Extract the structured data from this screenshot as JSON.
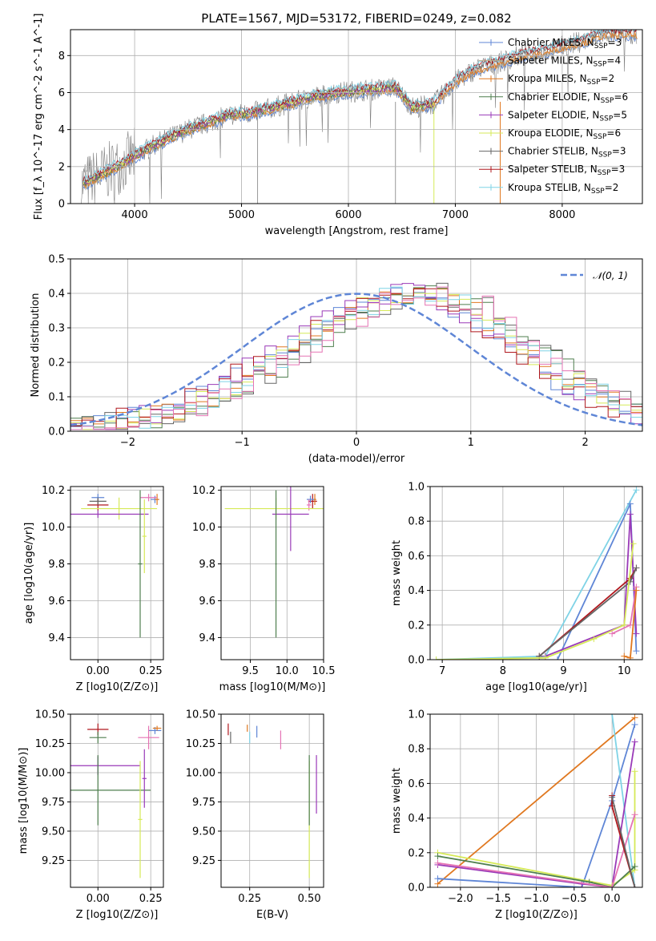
{
  "colors": {
    "chabrier_miles": "#5f86d6",
    "salpeter_miles": "#b9ac8a",
    "kroupa_miles": "#e07820",
    "chabrier_elodie": "#4f7f4f",
    "salpeter_elodie": "#9a3ab8",
    "kroupa_elodie": "#d6ea58",
    "chabrier_stelib": "#666666",
    "salpeter_stelib": "#b0181e",
    "kroupa_stelib": "#7fd3e6",
    "pink": "#e573b4",
    "spectrum": "#808080"
  },
  "chart_data": [
    {
      "id": "spectrum",
      "type": "line",
      "title": "PLATE=1567, MJD=53172, FIBERID=0249, z=0.082",
      "xlabel": "wavelength [Angstrom, rest frame]",
      "ylabel": "Flux [f_λ 10^-17 erg cm^-2 s^-1 A^-1]",
      "xlim": [
        3400,
        8750
      ],
      "ylim": [
        0,
        9.4
      ],
      "xticks": [
        4000,
        5000,
        6000,
        7000,
        8000
      ],
      "yticks": [
        0,
        2,
        4,
        6,
        8
      ],
      "legend_position": "top-right",
      "legend": [
        {
          "label": "Chabrier MILES, N_SSP=3",
          "color_key": "chabrier_miles"
        },
        {
          "label": "Salpeter MILES, N_SSP=4",
          "color_key": "salpeter_miles"
        },
        {
          "label": "Kroupa MILES, N_SSP=2",
          "color_key": "kroupa_miles"
        },
        {
          "label": "Chabrier ELODIE, N_SSP=6",
          "color_key": "chabrier_elodie"
        },
        {
          "label": "Salpeter ELODIE, N_SSP=5",
          "color_key": "salpeter_elodie"
        },
        {
          "label": "Kroupa ELODIE, N_SSP=6",
          "color_key": "kroupa_elodie"
        },
        {
          "label": "Chabrier STELIB, N_SSP=3",
          "color_key": "chabrier_stelib"
        },
        {
          "label": "Salpeter STELIB, N_SSP=3",
          "color_key": "salpeter_stelib"
        },
        {
          "label": "Kroupa STELIB, N_SSP=2",
          "color_key": "kroupa_stelib"
        }
      ],
      "continuum": {
        "x": [
          3500,
          3700,
          3900,
          4100,
          4300,
          4500,
          4700,
          4900,
          5100,
          5300,
          5500,
          5700,
          5900,
          6100,
          6300,
          6440,
          6600,
          6800,
          7000,
          7200,
          7400,
          7600,
          7800,
          8000,
          8200,
          8400
        ],
        "y": [
          1.0,
          1.6,
          2.2,
          2.9,
          3.5,
          4.0,
          4.4,
          4.8,
          4.9,
          5.2,
          5.5,
          5.8,
          6.0,
          6.1,
          6.2,
          6.3,
          5.2,
          5.4,
          6.6,
          7.3,
          7.6,
          8.0,
          8.2,
          8.5,
          8.8,
          9.2
        ]
      }
    },
    {
      "id": "residuals",
      "type": "line",
      "xlabel": "(data-model)/error",
      "ylabel": "Normed distribution",
      "xlim": [
        -2.5,
        2.5
      ],
      "ylim": [
        0,
        0.5
      ],
      "xticks": [
        -2,
        -1,
        0,
        1,
        2
      ],
      "yticks": [
        0.0,
        0.1,
        0.2,
        0.3,
        0.4,
        0.5
      ],
      "legend_position": "top-right",
      "legend": [
        {
          "label": "𝒩(0, 1)",
          "color_key": "chabrier_miles"
        }
      ],
      "series_note": "step histograms",
      "histogram_shape": {
        "x": [
          -2.4,
          -2.0,
          -1.6,
          -1.2,
          -0.8,
          -0.4,
          0.0,
          0.4,
          0.8,
          1.2,
          1.6,
          2.0,
          2.4
        ],
        "y": [
          0.02,
          0.04,
          0.08,
          0.15,
          0.23,
          0.32,
          0.38,
          0.4,
          0.36,
          0.25,
          0.16,
          0.09,
          0.04
        ]
      }
    },
    {
      "id": "age_vs_Z",
      "type": "scatter",
      "xlabel": "Z [log10(Z/Z⊙)]",
      "ylabel": "age [log10(age/yr)]",
      "xlim": [
        -0.13,
        0.31
      ],
      "ylim": [
        9.28,
        10.22
      ],
      "xticks": [
        0.0,
        0.25
      ],
      "yticks": [
        9.4,
        9.6,
        9.8,
        10.0,
        10.2
      ],
      "points": [
        {
          "x": 0.0,
          "y": 10.16,
          "xerr": 0.03,
          "yerr": 0.02,
          "color_key": "chabrier_miles"
        },
        {
          "x": 0.0,
          "y": 10.12,
          "xerr": 0.05,
          "yerr": 0.03,
          "color_key": "salpeter_stelib"
        },
        {
          "x": 0.0,
          "y": 10.14,
          "xerr": 0.04,
          "yerr": 0.02,
          "color_key": "chabrier_stelib"
        },
        {
          "x": 0.27,
          "y": 10.15,
          "xerr": 0.02,
          "yerr": 0.02,
          "color_key": "chabrier_miles"
        },
        {
          "x": 0.28,
          "y": 10.15,
          "xerr": 0.01,
          "yerr": 0.03,
          "color_key": "kroupa_miles"
        },
        {
          "x": 0.24,
          "y": 10.16,
          "xerr": 0.04,
          "yerr": 0.02,
          "color_key": "pink"
        },
        {
          "x": 0.1,
          "y": 10.1,
          "xerr": 0.18,
          "yerr": 0.06,
          "color_key": "kroupa_elodie"
        },
        {
          "x": 0.0,
          "y": 10.07,
          "xerr": 0.24,
          "yerr": 0.02,
          "color_key": "salpeter_elodie"
        },
        {
          "x": 0.2,
          "y": 9.8,
          "xerr": 0.01,
          "yerr": 0.4,
          "color_key": "chabrier_elodie"
        },
        {
          "x": 0.22,
          "y": 9.95,
          "xerr": 0.01,
          "yerr": 0.2,
          "color_key": "kroupa_elodie"
        }
      ]
    },
    {
      "id": "age_vs_mass",
      "type": "scatter",
      "xlabel": "mass [log10(M/M⊙)]",
      "ylabel": "",
      "xlim": [
        9.1,
        10.5
      ],
      "ylim": [
        9.28,
        10.22
      ],
      "xticks": [
        9.5,
        10.0,
        10.5
      ],
      "yticks": [
        9.4,
        9.6,
        9.8,
        10.0,
        10.2
      ],
      "points": [
        {
          "x": 10.35,
          "y": 10.14,
          "xerr": 0.06,
          "yerr": 0.04,
          "color_key": "salpeter_stelib"
        },
        {
          "x": 10.38,
          "y": 10.15,
          "xerr": 0.02,
          "yerr": 0.03,
          "color_key": "kroupa_miles"
        },
        {
          "x": 10.32,
          "y": 10.15,
          "xerr": 0.05,
          "yerr": 0.02,
          "color_key": "chabrier_miles"
        },
        {
          "x": 10.3,
          "y": 10.12,
          "xerr": 0.03,
          "yerr": 0.03,
          "color_key": "pink"
        },
        {
          "x": 9.85,
          "y": 10.1,
          "xerr": 0.7,
          "yerr": 0.06,
          "color_key": "kroupa_elodie"
        },
        {
          "x": 10.05,
          "y": 10.07,
          "xerr": 0.25,
          "yerr": 0.2,
          "color_key": "salpeter_elodie"
        },
        {
          "x": 9.85,
          "y": 9.8,
          "xerr": 0.01,
          "yerr": 0.4,
          "color_key": "chabrier_elodie"
        }
      ]
    },
    {
      "id": "weight_vs_age",
      "type": "line",
      "xlabel": "age [log10(age/yr)]",
      "ylabel": "mass weight",
      "xlim": [
        6.8,
        10.3
      ],
      "ylim": [
        0,
        1
      ],
      "xticks": [
        7,
        8,
        9,
        10
      ],
      "yticks": [
        0.0,
        0.2,
        0.4,
        0.6,
        0.8,
        1.0
      ],
      "series": [
        {
          "color_key": "kroupa_stelib",
          "x": [
            6.9,
            8.7,
            10.2
          ],
          "y": [
            0.0,
            0.02,
            0.98
          ]
        },
        {
          "color_key": "chabrier_miles",
          "x": [
            8.9,
            10.1,
            10.2
          ],
          "y": [
            0.0,
            0.9,
            0.05
          ]
        },
        {
          "color_key": "salpeter_elodie",
          "x": [
            8.7,
            10.0,
            10.1,
            10.2
          ],
          "y": [
            0.02,
            0.2,
            0.84,
            0.15
          ]
        },
        {
          "color_key": "salpeter_stelib",
          "x": [
            8.6,
            10.1,
            10.2
          ],
          "y": [
            0.02,
            0.47,
            0.53
          ]
        },
        {
          "color_key": "chabrier_stelib",
          "x": [
            8.6,
            10.1,
            10.2
          ],
          "y": [
            0.02,
            0.45,
            0.53
          ]
        },
        {
          "color_key": "kroupa_elodie",
          "x": [
            6.9,
            8.7,
            9.5,
            10.0,
            10.15
          ],
          "y": [
            0.0,
            0.01,
            0.12,
            0.2,
            0.67
          ]
        },
        {
          "color_key": "pink",
          "x": [
            9.8,
            10.1,
            10.2
          ],
          "y": [
            0.15,
            0.2,
            0.42
          ]
        },
        {
          "color_key": "kroupa_miles",
          "x": [
            10.0,
            10.1,
            10.2
          ],
          "y": [
            0.02,
            0.01,
            0.4
          ]
        }
      ]
    },
    {
      "id": "mass_vs_Z",
      "type": "scatter",
      "xlabel": "Z [log10(Z/Z⊙)]",
      "ylabel": "mass [log10(M/M⊙)]",
      "xlim": [
        -0.13,
        0.31
      ],
      "ylim": [
        9.02,
        10.5
      ],
      "xticks": [
        0.0,
        0.25
      ],
      "yticks": [
        9.25,
        9.5,
        9.75,
        10.0,
        10.25,
        10.5
      ],
      "points": [
        {
          "x": 0.0,
          "y": 10.37,
          "xerr": 0.05,
          "yerr": 0.05,
          "color_key": "salpeter_stelib"
        },
        {
          "x": 0.0,
          "y": 10.3,
          "xerr": 0.04,
          "yerr": 0.05,
          "color_key": "chabrier_elodie"
        },
        {
          "x": 0.27,
          "y": 10.36,
          "xerr": 0.03,
          "yerr": 0.03,
          "color_key": "chabrier_miles"
        },
        {
          "x": 0.28,
          "y": 10.38,
          "xerr": 0.02,
          "yerr": 0.02,
          "color_key": "kroupa_miles"
        },
        {
          "x": 0.24,
          "y": 10.3,
          "xerr": 0.05,
          "yerr": 0.1,
          "color_key": "pink"
        },
        {
          "x": 0.0,
          "y": 10.06,
          "xerr": 0.2,
          "yerr": 0.08,
          "color_key": "salpeter_elodie"
        },
        {
          "x": 0.0,
          "y": 9.85,
          "xerr": 0.25,
          "yerr": 0.3,
          "color_key": "chabrier_elodie"
        },
        {
          "x": 0.2,
          "y": 9.6,
          "xerr": 0.01,
          "yerr": 0.5,
          "color_key": "kroupa_elodie"
        },
        {
          "x": 0.22,
          "y": 9.95,
          "xerr": 0.01,
          "yerr": 0.25,
          "color_key": "salpeter_elodie"
        }
      ]
    },
    {
      "id": "mass_vs_ebv",
      "type": "scatter",
      "xlabel": "E(B-V)",
      "ylabel": "",
      "xlim": [
        0.13,
        0.56
      ],
      "ylim": [
        9.02,
        10.5
      ],
      "xticks": [
        0.25,
        0.5
      ],
      "yticks": [
        9.25,
        9.5,
        9.75,
        10.0,
        10.25,
        10.5
      ],
      "points": [
        {
          "x": 0.16,
          "y": 10.37,
          "yerr": 0.05,
          "color_key": "salpeter_stelib"
        },
        {
          "x": 0.17,
          "y": 10.3,
          "yerr": 0.05,
          "color_key": "chabrier_stelib"
        },
        {
          "x": 0.24,
          "y": 10.38,
          "yerr": 0.03,
          "color_key": "kroupa_miles"
        },
        {
          "x": 0.25,
          "y": 10.3,
          "yerr": 0.05,
          "color_key": "kroupa_stelib"
        },
        {
          "x": 0.28,
          "y": 10.35,
          "yerr": 0.05,
          "color_key": "chabrier_miles"
        },
        {
          "x": 0.38,
          "y": 10.28,
          "yerr": 0.08,
          "color_key": "pink"
        },
        {
          "x": 0.5,
          "y": 9.6,
          "yerr": 0.5,
          "color_key": "kroupa_elodie"
        },
        {
          "x": 0.5,
          "y": 9.85,
          "yerr": 0.3,
          "color_key": "chabrier_elodie"
        },
        {
          "x": 0.53,
          "y": 9.9,
          "yerr": 0.25,
          "color_key": "salpeter_elodie"
        }
      ]
    },
    {
      "id": "weight_vs_Z",
      "type": "line",
      "xlabel": "Z [log10(Z/Z⊙)]",
      "ylabel": "mass weight",
      "xlim": [
        -2.4,
        0.4
      ],
      "ylim": [
        0,
        1
      ],
      "xticks": [
        -2.0,
        -1.5,
        -1.0,
        -0.5,
        0.0
      ],
      "yticks": [
        0.0,
        0.2,
        0.4,
        0.6,
        0.8,
        1.0
      ],
      "series": [
        {
          "color_key": "kroupa_miles",
          "x": [
            -2.3,
            0.3
          ],
          "y": [
            0.02,
            0.98
          ]
        },
        {
          "color_key": "chabrier_miles",
          "x": [
            -2.3,
            -0.4,
            0.0,
            0.3
          ],
          "y": [
            0.05,
            0.0,
            0.5,
            0.94
          ]
        },
        {
          "color_key": "kroupa_stelib",
          "x": [
            0.0,
            0.3
          ],
          "y": [
            1.0,
            0.0
          ]
        },
        {
          "color_key": "salpeter_elodie",
          "x": [
            -2.3,
            -0.4,
            0.0,
            0.3
          ],
          "y": [
            0.13,
            0.02,
            0.0,
            0.84
          ]
        },
        {
          "color_key": "kroupa_elodie",
          "x": [
            -2.3,
            0.0,
            0.3,
            0.3
          ],
          "y": [
            0.2,
            0.01,
            0.1,
            0.67
          ]
        },
        {
          "color_key": "chabrier_elodie",
          "x": [
            -2.3,
            -0.3,
            0.0,
            0.3
          ],
          "y": [
            0.18,
            0.03,
            0.0,
            0.12
          ]
        },
        {
          "color_key": "pink",
          "x": [
            -2.3,
            0.0,
            0.3
          ],
          "y": [
            0.14,
            0.0,
            0.42
          ]
        },
        {
          "color_key": "salpeter_stelib",
          "x": [
            0.0,
            0.0,
            0.3
          ],
          "y": [
            0.53,
            0.47,
            0.0
          ]
        },
        {
          "color_key": "chabrier_stelib",
          "x": [
            0.0,
            0.3
          ],
          "y": [
            0.52,
            0.0
          ]
        }
      ]
    }
  ]
}
